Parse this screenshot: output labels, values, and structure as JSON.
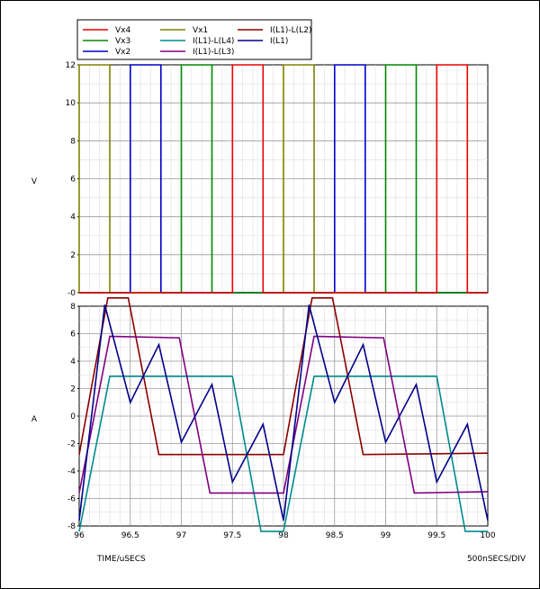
{
  "chart_data": [
    {
      "type": "line",
      "panel": "top",
      "ylabel": "V",
      "ylim": [
        0,
        12
      ],
      "xlim": [
        96,
        100
      ],
      "y_ticks": [
        "-0",
        "2",
        "4",
        "6",
        "8",
        "10",
        "12"
      ],
      "grid": true,
      "series": [
        {
          "name": "Vx1",
          "color": "#808000",
          "pulses": [
            [
              96.0,
              96.3
            ],
            [
              98.0,
              98.3
            ]
          ]
        },
        {
          "name": "Vx2",
          "color": "#0000cc",
          "pulses": [
            [
              96.5,
              96.8
            ],
            [
              98.5,
              98.8
            ]
          ]
        },
        {
          "name": "Vx3",
          "color": "#008800",
          "pulses": [
            [
              97.0,
              97.3
            ],
            [
              99.0,
              99.3
            ]
          ]
        },
        {
          "name": "Vx4",
          "color": "#ee0000",
          "pulses": [
            [
              97.5,
              97.8
            ],
            [
              99.5,
              99.8
            ]
          ]
        }
      ],
      "pulse_high": 12
    },
    {
      "type": "line",
      "panel": "bottom",
      "ylabel": "A",
      "ylim": [
        -8,
        8
      ],
      "xlim": [
        96,
        100
      ],
      "y_ticks": [
        "-8",
        "-6",
        "-4",
        "-2",
        "0",
        "2",
        "4",
        "6",
        "8"
      ],
      "x_ticks": [
        "96",
        "96.5",
        "97",
        "97.5",
        "98",
        "98.5",
        "99",
        "99.5",
        "100"
      ],
      "xlabel": "TIME/uSECS",
      "x_scale_note": "500nSECS/DIV",
      "grid": true,
      "series": [
        {
          "name": "I(L1)-L(L2)",
          "color": "#8b0000",
          "x": [
            96.0,
            96.28,
            96.48,
            96.78,
            97.98,
            98.0,
            98.28,
            98.48,
            98.78,
            100.0
          ],
          "y": [
            -2.8,
            8.6,
            8.6,
            -2.8,
            -2.8,
            -2.8,
            8.6,
            8.6,
            -2.8,
            -2.7
          ]
        },
        {
          "name": "I(L1)-L(L4)",
          "color": "#008b8b",
          "x": [
            96.0,
            96.3,
            97.5,
            97.78,
            98.0,
            98.3,
            99.5,
            99.78,
            100.0
          ],
          "y": [
            -8.4,
            2.9,
            2.9,
            -8.4,
            -8.4,
            2.9,
            2.9,
            -8.4,
            -8.4
          ]
        },
        {
          "name": "I(L1)-L(L3)",
          "color": "#800080",
          "x": [
            96.0,
            96.3,
            96.98,
            97.28,
            97.98,
            98.0,
            98.3,
            98.98,
            99.28,
            100.0
          ],
          "y": [
            -5.6,
            5.8,
            5.7,
            -5.6,
            -5.6,
            -5.6,
            5.8,
            5.7,
            -5.6,
            -5.5
          ]
        },
        {
          "name": "I(L1)",
          "color": "#00008b",
          "x": [
            96.0,
            96.25,
            96.5,
            96.78,
            97.0,
            97.3,
            97.5,
            97.8,
            98.0,
            98.25,
            98.5,
            98.78,
            99.0,
            99.3,
            99.5,
            99.8,
            100.0
          ],
          "y": [
            -7.6,
            8.1,
            1.0,
            5.2,
            -1.9,
            2.3,
            -4.8,
            -0.6,
            -7.6,
            8.1,
            1.0,
            5.2,
            -1.9,
            2.3,
            -4.8,
            -0.6,
            -7.6
          ]
        }
      ]
    }
  ],
  "legend": [
    {
      "label": "Vx4",
      "color": "#ee0000"
    },
    {
      "label": "Vx1",
      "color": "#808000"
    },
    {
      "label": "I(L1)-L(L2)",
      "color": "#8b0000"
    },
    {
      "label": "Vx3",
      "color": "#008800"
    },
    {
      "label": "I(L1)-L(L4)",
      "color": "#008b8b"
    },
    {
      "label": "I(L1)",
      "color": "#00008b"
    },
    {
      "label": "Vx2",
      "color": "#0000cc"
    },
    {
      "label": "I(L1)-L(L3)",
      "color": "#800080"
    }
  ]
}
